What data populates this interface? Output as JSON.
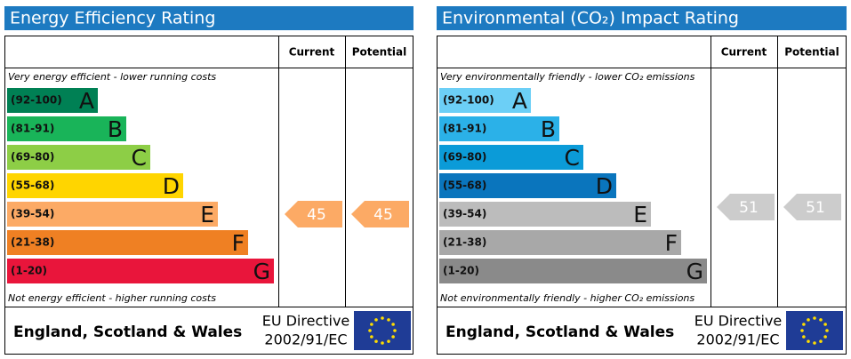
{
  "panels": [
    {
      "title": "Energy Efficiency Rating",
      "current_header": "Current",
      "potential_header": "Potential",
      "top_note": "Very energy efficient - lower running costs",
      "bottom_note": "Not energy efficient - higher running costs",
      "bands": [
        {
          "range": "(92-100)",
          "letter": "A",
          "color": "#008054"
        },
        {
          "range": "(81-91)",
          "letter": "B",
          "color": "#19b459"
        },
        {
          "range": "(69-80)",
          "letter": "C",
          "color": "#8dce46"
        },
        {
          "range": "(55-68)",
          "letter": "D",
          "color": "#ffd500"
        },
        {
          "range": "(39-54)",
          "letter": "E",
          "color": "#fcaa65"
        },
        {
          "range": "(21-38)",
          "letter": "F",
          "color": "#ef8023"
        },
        {
          "range": "(1-20)",
          "letter": "G",
          "color": "#e9153b"
        }
      ],
      "current": 45,
      "potential": 45,
      "region": "England, Scotland & Wales",
      "directive": [
        "EU Directive",
        "2002/91/EC"
      ]
    },
    {
      "title": "Environmental (CO₂) Impact Rating",
      "current_header": "Current",
      "potential_header": "Potential",
      "top_note": "Very environmentally friendly - lower CO₂ emissions",
      "bottom_note": "Not environmentally friendly - higher CO₂ emissions",
      "bands": [
        {
          "range": "(92-100)",
          "letter": "A",
          "color": "#6ccff6"
        },
        {
          "range": "(81-91)",
          "letter": "B",
          "color": "#2bb1e8"
        },
        {
          "range": "(69-80)",
          "letter": "C",
          "color": "#0b9bd8"
        },
        {
          "range": "(55-68)",
          "letter": "D",
          "color": "#0a75bd"
        },
        {
          "range": "(39-54)",
          "letter": "E",
          "color": "#bcbcbc"
        },
        {
          "range": "(21-38)",
          "letter": "F",
          "color": "#a8a8a8"
        },
        {
          "range": "(1-20)",
          "letter": "G",
          "color": "#8a8a8a"
        }
      ],
      "current": 51,
      "potential": 51,
      "region": "England, Scotland & Wales",
      "directive": [
        "EU Directive",
        "2002/91/EC"
      ]
    }
  ]
}
